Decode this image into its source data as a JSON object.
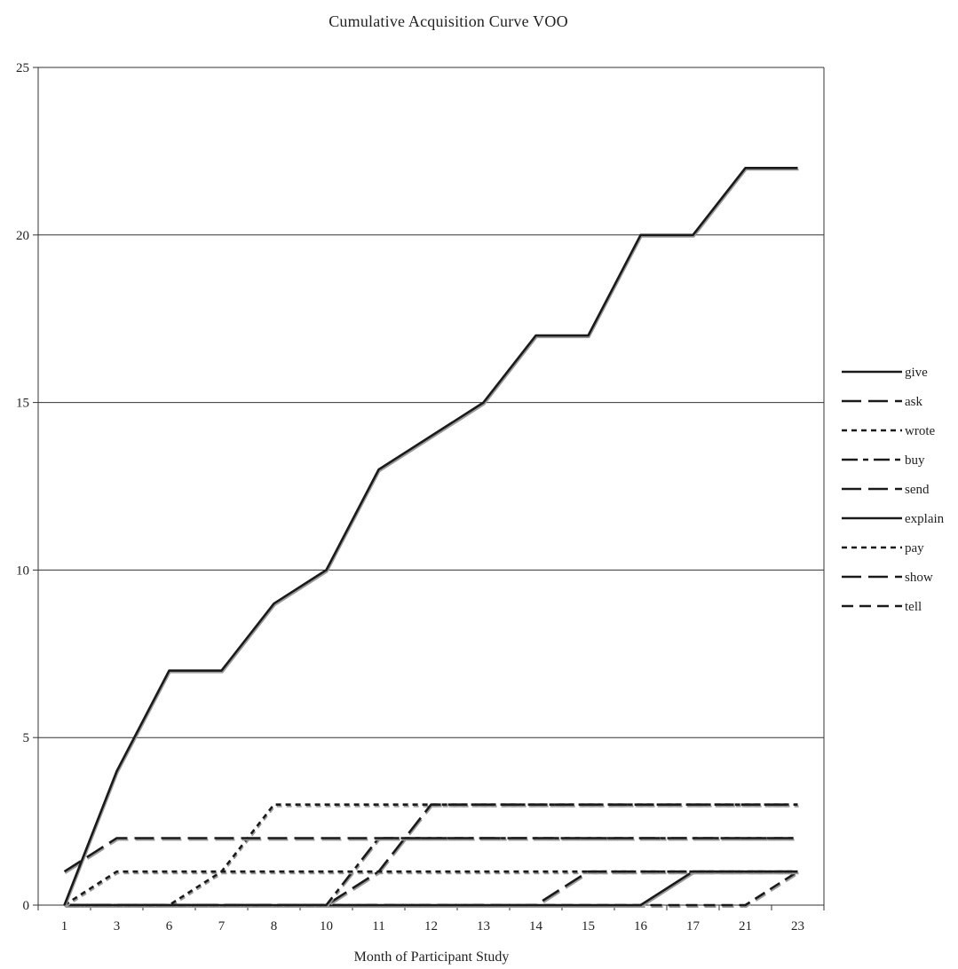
{
  "chart_data": {
    "type": "line",
    "title": "Cumulative Acquisition Curve  VOO",
    "xlabel": "Month of Participant Study",
    "ylabel": "",
    "categories": [
      "1",
      "3",
      "6",
      "7",
      "8",
      "10",
      "11",
      "12",
      "13",
      "14",
      "15",
      "16",
      "17",
      "21",
      "23"
    ],
    "ylim": [
      0,
      25
    ],
    "yticks": [
      0,
      5,
      10,
      15,
      20,
      25
    ],
    "grid": "horizontal",
    "legend_position": "right",
    "series": [
      {
        "name": "give",
        "style": "solid",
        "values": [
          0,
          4,
          7,
          7,
          9,
          10,
          13,
          14,
          15,
          17,
          17,
          20,
          20,
          22,
          22
        ]
      },
      {
        "name": "ask",
        "style": "long-dash",
        "values": [
          1,
          2,
          2,
          2,
          2,
          2,
          2,
          2,
          2,
          2,
          2,
          2,
          2,
          2,
          2
        ]
      },
      {
        "name": "wrote",
        "style": "short-dash",
        "values": [
          0,
          1,
          1,
          1,
          1,
          1,
          1,
          1,
          1,
          1,
          1,
          1,
          1,
          1,
          1
        ]
      },
      {
        "name": "buy",
        "style": "long-short",
        "values": [
          0,
          0,
          0,
          0,
          0,
          0,
          2,
          2,
          2,
          2,
          2,
          2,
          2,
          2,
          2
        ]
      },
      {
        "name": "send",
        "style": "long-dash",
        "values": [
          0,
          0,
          0,
          0,
          0,
          0,
          1,
          3,
          3,
          3,
          3,
          3,
          3,
          3,
          3
        ]
      },
      {
        "name": "explain",
        "style": "solid",
        "values": [
          0,
          0,
          0,
          0,
          0,
          0,
          0,
          0,
          0,
          0,
          0,
          0,
          1,
          1,
          1
        ]
      },
      {
        "name": "pay",
        "style": "short-dash",
        "values": [
          0,
          0,
          0,
          1,
          3,
          3,
          3,
          3,
          3,
          3,
          3,
          3,
          3,
          3,
          3
        ]
      },
      {
        "name": "show",
        "style": "long-dash",
        "values": [
          0,
          0,
          0,
          0,
          0,
          0,
          0,
          0,
          0,
          0,
          1,
          1,
          1,
          1,
          1
        ]
      },
      {
        "name": "tell",
        "style": "medium-dash",
        "values": [
          0,
          0,
          0,
          0,
          0,
          0,
          0,
          0,
          0,
          0,
          0,
          0,
          0,
          0,
          1
        ]
      }
    ]
  },
  "colors": {
    "line": "#1a1a1a",
    "shadow": "#9a9a9a",
    "grid": "#333333"
  }
}
